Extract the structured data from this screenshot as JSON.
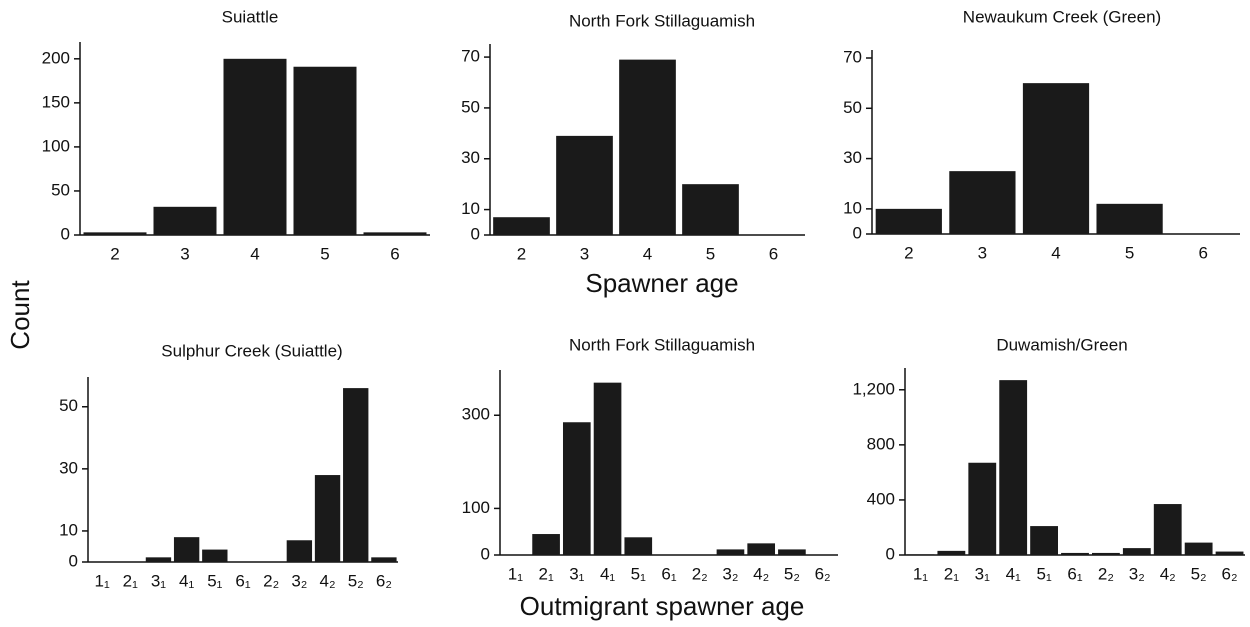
{
  "labels": {
    "y": "Count",
    "x_top": "Spawner age",
    "x_bottom": "Outmigrant spawner age"
  },
  "chart_data": [
    {
      "type": "bar",
      "title": "Suiattle",
      "categories": [
        "2",
        "3",
        "4",
        "5",
        "6"
      ],
      "values": [
        3,
        32,
        200,
        191,
        3
      ],
      "color": "#1a1a1a",
      "ylim": [
        0,
        210
      ],
      "yticks": [
        0,
        50,
        100,
        150,
        200
      ]
    },
    {
      "type": "bar",
      "title": "North Fork Stillaguamish",
      "categories": [
        "2",
        "3",
        "4",
        "5",
        "6"
      ],
      "values": [
        7,
        39,
        69,
        20,
        0
      ],
      "color": "#1a1a1a",
      "ylim": [
        0,
        72
      ],
      "yticks": [
        0,
        10,
        30,
        50,
        70
      ]
    },
    {
      "type": "bar",
      "title": "Newaukum Creek (Green)",
      "categories": [
        "2",
        "3",
        "4",
        "5",
        "6"
      ],
      "values": [
        10,
        25,
        60,
        12,
        0
      ],
      "color": "#1a1a1a",
      "ylim": [
        0,
        70
      ],
      "yticks": [
        0,
        10,
        30,
        50,
        70
      ]
    },
    {
      "type": "bar",
      "title": "Sulphur Creek (Suiattle)",
      "categories": [
        "1₁",
        "2₁",
        "3₁",
        "4₁",
        "5₁",
        "6₁",
        "2₂",
        "3₂",
        "4₂",
        "5₂",
        "6₂"
      ],
      "values": [
        0,
        0,
        1.5,
        8,
        4,
        0,
        0,
        7,
        28,
        56,
        1.5
      ],
      "color": "#1a1a1a",
      "ylim": [
        0,
        57
      ],
      "yticks": [
        0,
        10,
        30,
        50
      ]
    },
    {
      "type": "bar",
      "title": "North Fork Stillaguamish",
      "categories": [
        "1₁",
        "2₁",
        "3₁",
        "4₁",
        "5₁",
        "6₁",
        "2₂",
        "3₂",
        "4₂",
        "5₂",
        "6₂"
      ],
      "values": [
        0,
        45,
        285,
        370,
        38,
        0,
        0,
        12,
        25,
        12,
        0
      ],
      "color": "#1a1a1a",
      "ylim": [
        0,
        380
      ],
      "yticks": [
        0,
        100,
        300
      ]
    },
    {
      "type": "bar",
      "title": "Duwamish/Green",
      "categories": [
        "1₁",
        "2₁",
        "3₁",
        "4₁",
        "5₁",
        "6₁",
        "2₂",
        "3₂",
        "4₂",
        "5₂",
        "6₂"
      ],
      "values": [
        5,
        30,
        670,
        1270,
        210,
        15,
        15,
        50,
        370,
        90,
        25
      ],
      "color": "#1a1a1a",
      "ylim": [
        0,
        1300
      ],
      "yticks": [
        0,
        400,
        800,
        {
          "value": 1200,
          "label": "1,200"
        }
      ]
    }
  ]
}
